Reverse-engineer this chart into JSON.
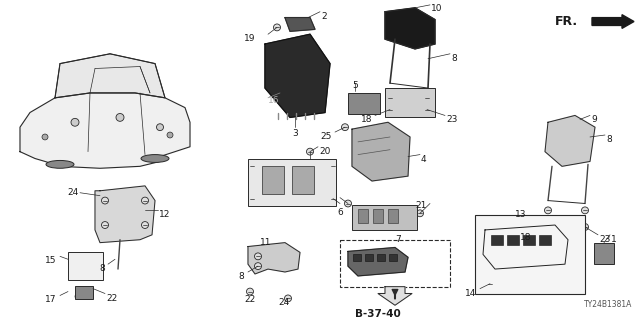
{
  "bg_color": "#ffffff",
  "diagram_code": "TY24B1381A",
  "fr_label": "FR.",
  "b_ref": "B-37-40",
  "line_color": "#2a2a2a",
  "label_color": "#1a1a1a",
  "font_size": 6.5
}
